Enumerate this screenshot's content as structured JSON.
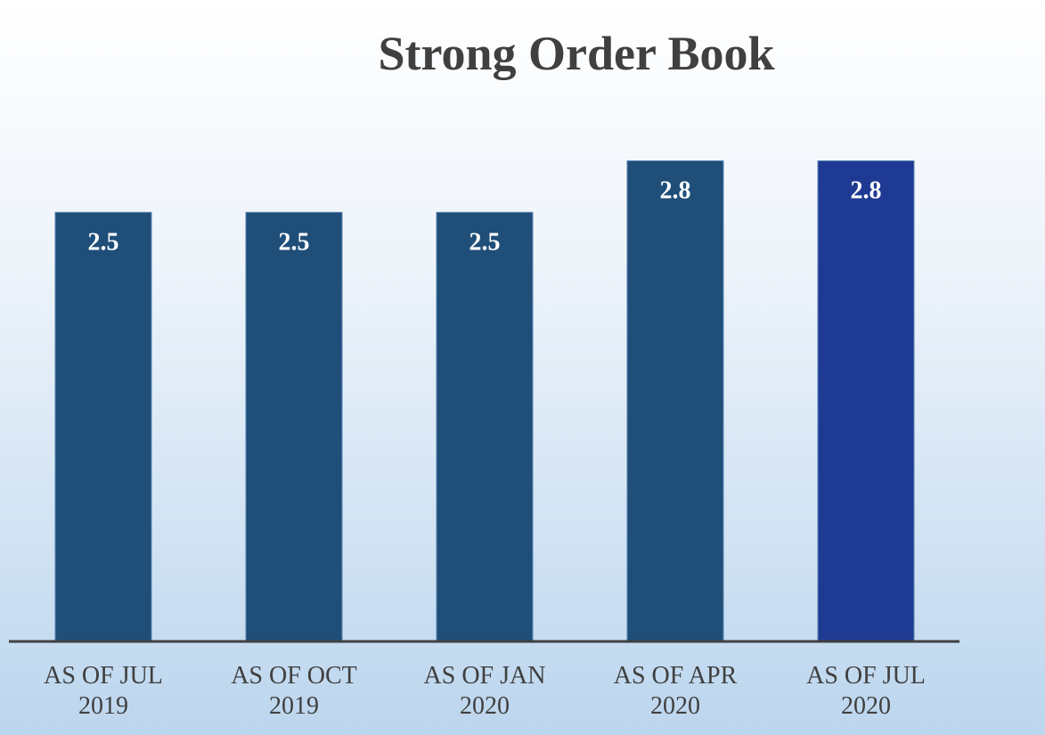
{
  "chart_data": {
    "type": "bar",
    "title": "Strong Order Book",
    "categories": [
      "AS OF JUL\n2019",
      "AS OF OCT\n2019",
      "AS OF JAN\n2020",
      "AS OF APR\n2020",
      "AS OF JUL\n2020"
    ],
    "values": [
      2.5,
      2.5,
      2.5,
      2.8,
      2.8
    ],
    "colors": [
      "#1f4e79",
      "#1f4e79",
      "#1f4e79",
      "#1f4e79",
      "#1f3a93"
    ],
    "ylim": [
      0,
      3
    ]
  }
}
